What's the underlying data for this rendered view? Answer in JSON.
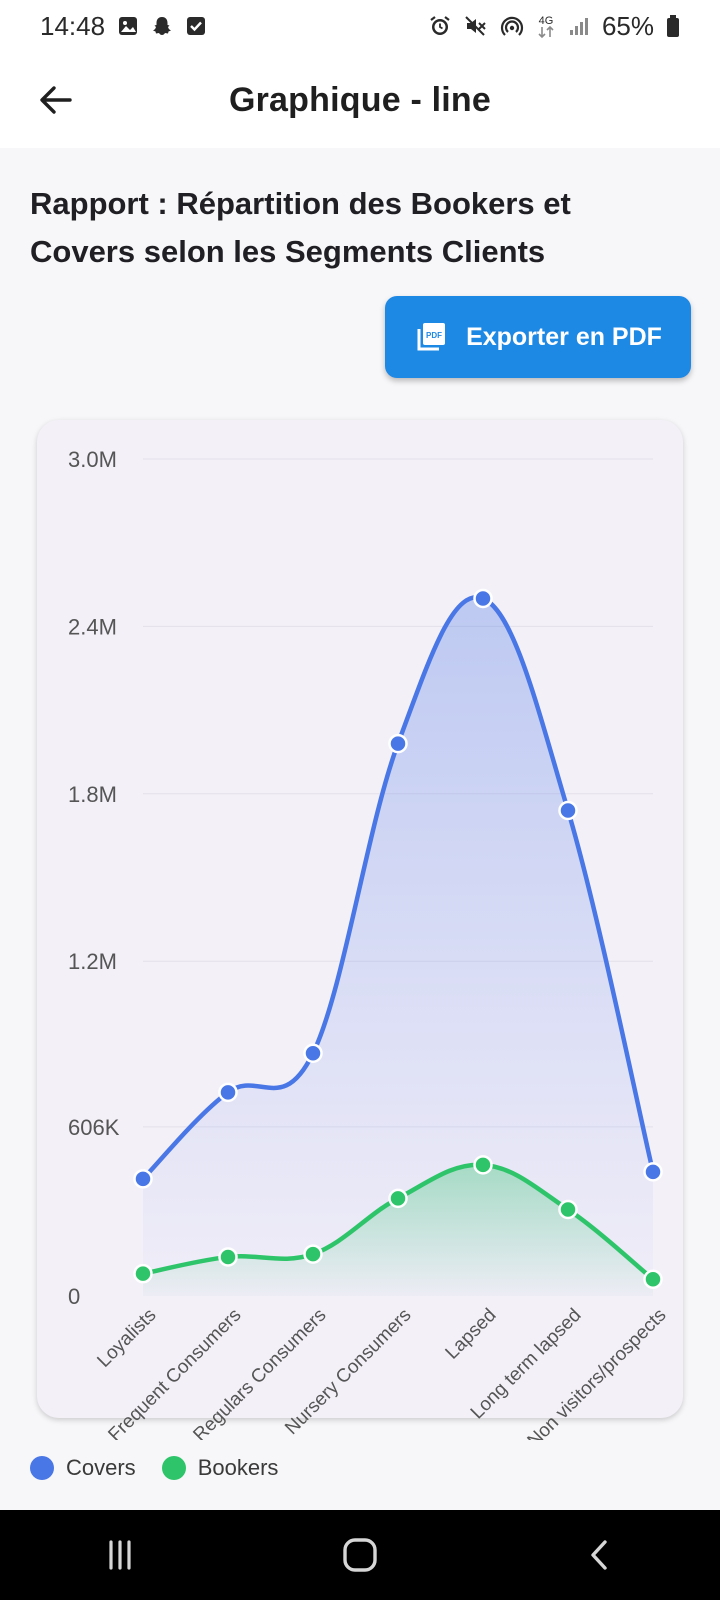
{
  "status_bar": {
    "time": "14:48",
    "battery": "65%",
    "network": "4G",
    "left_icons": [
      "gallery-icon",
      "snapchat-icon",
      "checkbox-icon"
    ],
    "right_icons": [
      "alarm-icon",
      "mute-icon",
      "hotspot-icon",
      "network-4g-icon",
      "signal-icon",
      "battery-icon"
    ]
  },
  "app_bar": {
    "title": "Graphique - line",
    "back_icon": "arrow-back-icon"
  },
  "report": {
    "title": "Rapport : Répartition des Bookers et Covers selon les Segments Clients"
  },
  "export_button": {
    "label": "Exporter en PDF",
    "icon": "pdf-icon",
    "color": "#1e88e5"
  },
  "chart_data": {
    "type": "line",
    "smooth": true,
    "area_fill": true,
    "grid": "horizontal",
    "legend_position": "bottom-left",
    "categories": [
      "Loyalists",
      "Frequent Consumers",
      "Regulars Consumers",
      "Nursery Consumers",
      "Lapsed",
      "Long term lapsed",
      "Non visitors/prospects"
    ],
    "ylim": [
      0,
      3000000
    ],
    "y_tick_values": [
      0,
      606000,
      1200000,
      1800000,
      2400000,
      3000000
    ],
    "y_tick_labels": [
      "0",
      "606K",
      "1.2M",
      "1.8M",
      "2.4M",
      "3.0M"
    ],
    "series": [
      {
        "name": "Covers",
        "color": "#4a77e6",
        "values": [
          420000,
          730000,
          870000,
          1980000,
          2500000,
          1740000,
          445000
        ]
      },
      {
        "name": "Bookers",
        "color": "#2ec56a",
        "values": [
          80000,
          140000,
          150000,
          350000,
          470000,
          310000,
          60000
        ]
      }
    ]
  },
  "nav_bar": {
    "icons": [
      "recent-apps-icon",
      "home-icon",
      "back-icon"
    ]
  }
}
